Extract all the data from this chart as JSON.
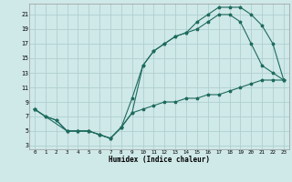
{
  "xlabel": "Humidex (Indice chaleur)",
  "bg_color": "#cfe8e8",
  "grid_color": "#afd0d0",
  "line_color": "#1e6b5e",
  "xlim": [
    -0.5,
    23.5
  ],
  "ylim": [
    2.5,
    22.5
  ],
  "xticks": [
    0,
    1,
    2,
    3,
    4,
    5,
    6,
    7,
    8,
    9,
    10,
    11,
    12,
    13,
    14,
    15,
    16,
    17,
    18,
    19,
    20,
    21,
    22,
    23
  ],
  "yticks": [
    3,
    5,
    7,
    9,
    11,
    13,
    15,
    17,
    19,
    21
  ],
  "line1_x": [
    0,
    1,
    2,
    3,
    4,
    5,
    6,
    7,
    8,
    9,
    10,
    11,
    12,
    13,
    14,
    15,
    16,
    17,
    18,
    19,
    20,
    21,
    22,
    23
  ],
  "line1_y": [
    8,
    7,
    6.5,
    5,
    5,
    5,
    4.5,
    4,
    5.5,
    7.5,
    8,
    8.5,
    9,
    9,
    9.5,
    9.5,
    10,
    10,
    10.5,
    11,
    11.5,
    12,
    12,
    12
  ],
  "line2_x": [
    0,
    1,
    2,
    3,
    4,
    5,
    6,
    7,
    8,
    9,
    10,
    11,
    12,
    13,
    14,
    15,
    16,
    17,
    18,
    19,
    20,
    21,
    22,
    23
  ],
  "line2_y": [
    8,
    7,
    6.5,
    5,
    5,
    5,
    4.5,
    4,
    5.5,
    7.5,
    14,
    16,
    17,
    18,
    18.5,
    19,
    20,
    21,
    21,
    20,
    17,
    14,
    13,
    12
  ],
  "line3_x": [
    0,
    3,
    4,
    5,
    6,
    7,
    8,
    9,
    10,
    11,
    12,
    13,
    14,
    15,
    16,
    17,
    18,
    19,
    20,
    21,
    22,
    23
  ],
  "line3_y": [
    8,
    5,
    5,
    5,
    4.5,
    4,
    5.5,
    9.5,
    14,
    16,
    17,
    18,
    18.5,
    20,
    21,
    22,
    22,
    22,
    21,
    19.5,
    17,
    12
  ]
}
